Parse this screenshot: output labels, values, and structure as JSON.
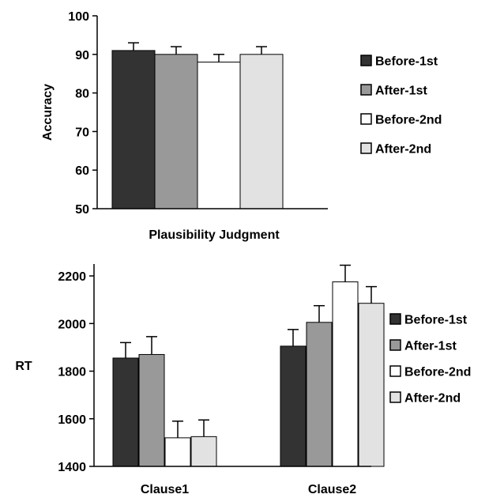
{
  "colors": {
    "before_1st": "#333333",
    "after_1st": "#999999",
    "before_2nd": "#ffffff",
    "after_2nd": "#e2e2e2",
    "stroke": "#000000"
  },
  "chart_data": [
    {
      "type": "bar",
      "title": "",
      "xlabel": "Plausibility Judgment",
      "ylabel": "Accuracy",
      "ylim": [
        50,
        100
      ],
      "yticks": [
        50,
        60,
        70,
        80,
        90,
        100
      ],
      "categories": [
        "Plausibility Judgment"
      ],
      "show_category_labels": false,
      "series": [
        {
          "name": "Before-1st",
          "values": [
            91
          ],
          "errors": [
            2
          ],
          "color": "#333333"
        },
        {
          "name": "After-1st",
          "values": [
            90
          ],
          "errors": [
            2
          ],
          "color": "#999999"
        },
        {
          "name": "Before-2nd",
          "values": [
            88
          ],
          "errors": [
            2
          ],
          "color": "#ffffff"
        },
        {
          "name": "After-2nd",
          "values": [
            90
          ],
          "errors": [
            2
          ],
          "color": "#e2e2e2"
        }
      ],
      "grid": false,
      "legend": "right"
    },
    {
      "type": "bar",
      "title": "",
      "xlabel": "",
      "ylabel": "RT",
      "ylim": [
        1400,
        2250
      ],
      "yticks": [
        1400,
        1600,
        1800,
        2000,
        2200
      ],
      "categories": [
        "Clause1",
        "Clause2"
      ],
      "show_category_labels": true,
      "series": [
        {
          "name": "Before-1st",
          "values": [
            1855,
            1905
          ],
          "errors": [
            65,
            70
          ],
          "color": "#333333"
        },
        {
          "name": "After-1st",
          "values": [
            1870,
            2005
          ],
          "errors": [
            75,
            70
          ],
          "color": "#999999"
        },
        {
          "name": "Before-2nd",
          "values": [
            1520,
            2175
          ],
          "errors": [
            70,
            70
          ],
          "color": "#ffffff"
        },
        {
          "name": "After-2nd",
          "values": [
            1525,
            2085
          ],
          "errors": [
            70,
            70
          ],
          "color": "#e2e2e2"
        }
      ],
      "grid": false,
      "legend": "right"
    }
  ]
}
